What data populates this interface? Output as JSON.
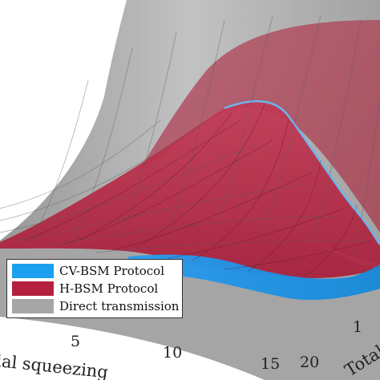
{
  "chart_data": {
    "type": "surface3d",
    "title": "",
    "xlabel": "Initial squeezing",
    "ylabel": "Total",
    "x_ticks": [
      "5",
      "10",
      "15"
    ],
    "y_ticks": [
      "20",
      "1"
    ],
    "legend": {
      "placement": "bottom-left"
    },
    "series": [
      {
        "name": "CV-BSM Protocol",
        "color": "#1ba0f0"
      },
      {
        "name": "H-BSM Protocol",
        "color": "#b3213f"
      },
      {
        "name": "Direct transmission",
        "color": "#a6a6a6"
      }
    ]
  }
}
